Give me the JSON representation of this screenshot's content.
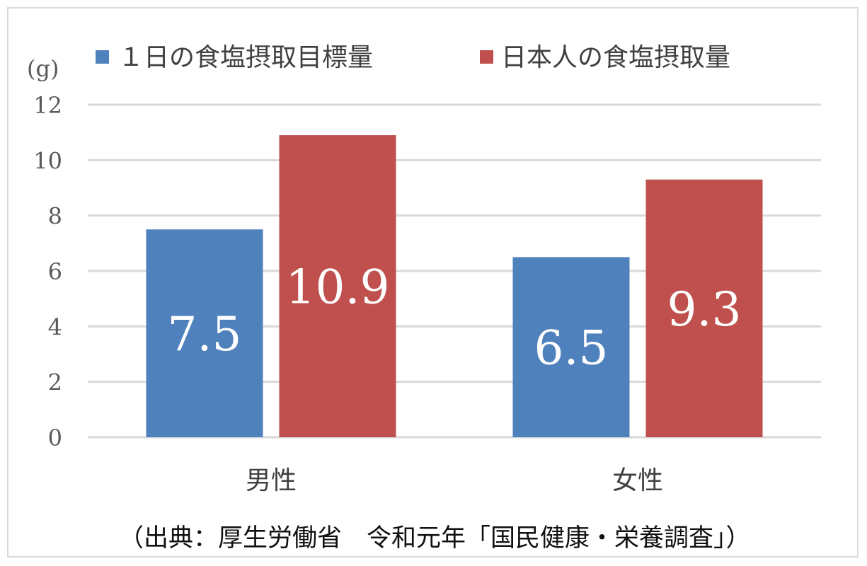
{
  "chart_data": {
    "type": "bar",
    "categories": [
      "男性",
      "女性"
    ],
    "series": [
      {
        "name": "１日の食塩摂取目標量",
        "values": [
          7.5,
          6.5
        ],
        "labels": [
          "7.5",
          "6.5"
        ],
        "color": "#4f81bd"
      },
      {
        "name": "日本人の食塩摂取量",
        "values": [
          10.9,
          9.3
        ],
        "labels": [
          "10.9",
          "9.3"
        ],
        "color": "#c0504d"
      }
    ],
    "ylabel": "(g)",
    "ylim": [
      0,
      12
    ],
    "yticks": [
      0,
      2,
      4,
      6,
      8,
      10,
      12
    ],
    "grid": true,
    "legend": "top",
    "source": "（出典：厚生労働省　令和元年「国民健康・栄養調査」）"
  }
}
